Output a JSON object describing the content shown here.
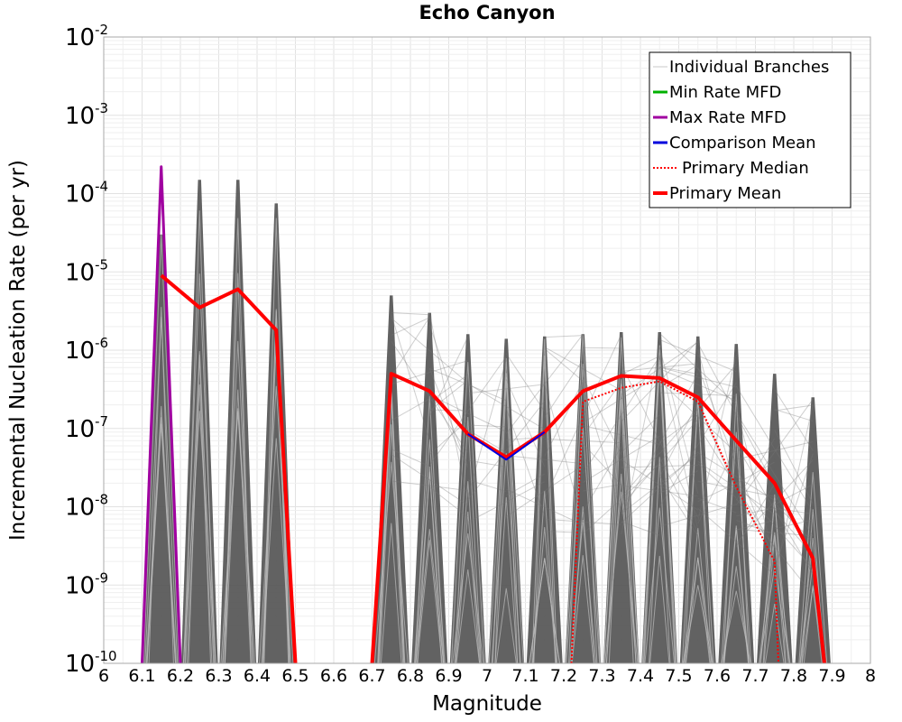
{
  "chart_data": {
    "type": "line",
    "title": "Echo Canyon",
    "xlabel": "Magnitude",
    "ylabel": "Incremental Nucleation Rate (per yr)",
    "x_scale": "linear",
    "y_scale": "log",
    "xlim": [
      6,
      8
    ],
    "ylim": [
      1e-10,
      0.01
    ],
    "x_ticks": [
      6,
      6.1,
      6.2,
      6.3,
      6.4,
      6.5,
      6.6,
      6.7,
      6.8,
      6.9,
      7,
      7.1,
      7.2,
      7.3,
      7.4,
      7.5,
      7.6,
      7.7,
      7.8,
      7.9,
      8
    ],
    "x_tick_labels": [
      "6",
      "6.1",
      "6.2",
      "6.3",
      "6.4",
      "6.5",
      "6.6",
      "6.7",
      "6.8",
      "6.9",
      "7",
      "7.1",
      "7.2",
      "7.3",
      "7.4",
      "7.5",
      "7.6",
      "7.7",
      "7.8",
      "7.9",
      "8"
    ],
    "y_ticks": [
      {
        "mantissa": "10",
        "exp": "-10",
        "value": 1e-10
      },
      {
        "mantissa": "10",
        "exp": "-9",
        "value": 1e-09
      },
      {
        "mantissa": "10",
        "exp": "-8",
        "value": 1e-08
      },
      {
        "mantissa": "10",
        "exp": "-7",
        "value": 1e-07
      },
      {
        "mantissa": "10",
        "exp": "-6",
        "value": 1e-06
      },
      {
        "mantissa": "10",
        "exp": "-5",
        "value": 1e-05
      },
      {
        "mantissa": "10",
        "exp": "-4",
        "value": 0.0001
      },
      {
        "mantissa": "10",
        "exp": "-3",
        "value": 0.001
      },
      {
        "mantissa": "10",
        "exp": "-2",
        "value": 0.01
      }
    ],
    "grid": true,
    "legend_position": "top-right",
    "legend": [
      {
        "label": "Individual Branches",
        "color": "#c8c8c8",
        "style": "solid",
        "width": 1
      },
      {
        "label": "Min Rate MFD",
        "color": "#00b000",
        "style": "solid",
        "width": 3
      },
      {
        "label": "Max Rate MFD",
        "color": "#a000a0",
        "style": "solid",
        "width": 3
      },
      {
        "label": "Comparison Mean",
        "color": "#0000dd",
        "style": "solid",
        "width": 3
      },
      {
        "label": "Primary Median",
        "color": "#ff0000",
        "style": "dotted",
        "width": 2
      },
      {
        "label": "Primary Mean",
        "color": "#ff0000",
        "style": "solid",
        "width": 4
      }
    ],
    "series": [
      {
        "name": "Max Rate MFD",
        "color": "#a000a0",
        "width": 3,
        "style": "solid",
        "x": [
          6.1,
          6.15,
          6.2
        ],
        "y": [
          1e-10,
          0.00022,
          1e-10
        ]
      },
      {
        "name": "Primary Mean",
        "color": "#ff0000",
        "width": 4,
        "style": "solid",
        "x": [
          6.15,
          6.25,
          6.35,
          6.45,
          6.5
        ],
        "y": [
          9e-06,
          3.5e-06,
          6e-06,
          1.8e-06,
          1e-10
        ]
      },
      {
        "name": "Primary Mean",
        "color": "#ff0000",
        "width": 4,
        "style": "solid",
        "x": [
          6.7,
          6.75,
          6.85,
          6.95,
          7.05,
          7.15,
          7.25,
          7.35,
          7.45,
          7.55,
          7.65,
          7.75,
          7.85,
          7.88
        ],
        "y": [
          1e-10,
          5e-07,
          3e-07,
          8.5e-08,
          4.3e-08,
          9e-08,
          3e-07,
          4.7e-07,
          4.4e-07,
          2.5e-07,
          7e-08,
          2e-08,
          2.2e-09,
          1e-10
        ]
      },
      {
        "name": "Primary Median",
        "color": "#ff0000",
        "width": 2,
        "style": "dotted",
        "x": [
          7.22,
          7.25,
          7.35,
          7.45,
          7.55,
          7.65,
          7.75,
          7.76
        ],
        "y": [
          1e-10,
          2.2e-07,
          3.3e-07,
          4e-07,
          2.2e-07,
          1.8e-08,
          2e-09,
          1e-10
        ]
      },
      {
        "name": "Comparison Mean",
        "color": "#0000dd",
        "width": 2,
        "style": "solid",
        "x": [
          6.95,
          7.05,
          7.15
        ],
        "y": [
          8.5e-08,
          4e-08,
          9e-08
        ]
      }
    ],
    "branch_envelopes": {
      "name": "Individual Branches",
      "color": "#555555",
      "spikes": [
        {
          "x": 6.15,
          "peak": 3e-05
        },
        {
          "x": 6.25,
          "peak": 0.00015
        },
        {
          "x": 6.35,
          "peak": 0.00015
        },
        {
          "x": 6.45,
          "peak": 7.5e-05
        },
        {
          "x": 6.75,
          "peak": 5e-06
        },
        {
          "x": 6.85,
          "peak": 3e-06
        },
        {
          "x": 6.95,
          "peak": 1.6e-06
        },
        {
          "x": 7.05,
          "peak": 1.4e-06
        },
        {
          "x": 7.15,
          "peak": 1.5e-06
        },
        {
          "x": 7.25,
          "peak": 1.6e-06
        },
        {
          "x": 7.35,
          "peak": 1.7e-06
        },
        {
          "x": 7.45,
          "peak": 1.7e-06
        },
        {
          "x": 7.55,
          "peak": 1.5e-06
        },
        {
          "x": 7.65,
          "peak": 1.2e-06
        },
        {
          "x": 7.75,
          "peak": 5e-07
        },
        {
          "x": 7.85,
          "peak": 2.5e-07
        }
      ]
    }
  }
}
